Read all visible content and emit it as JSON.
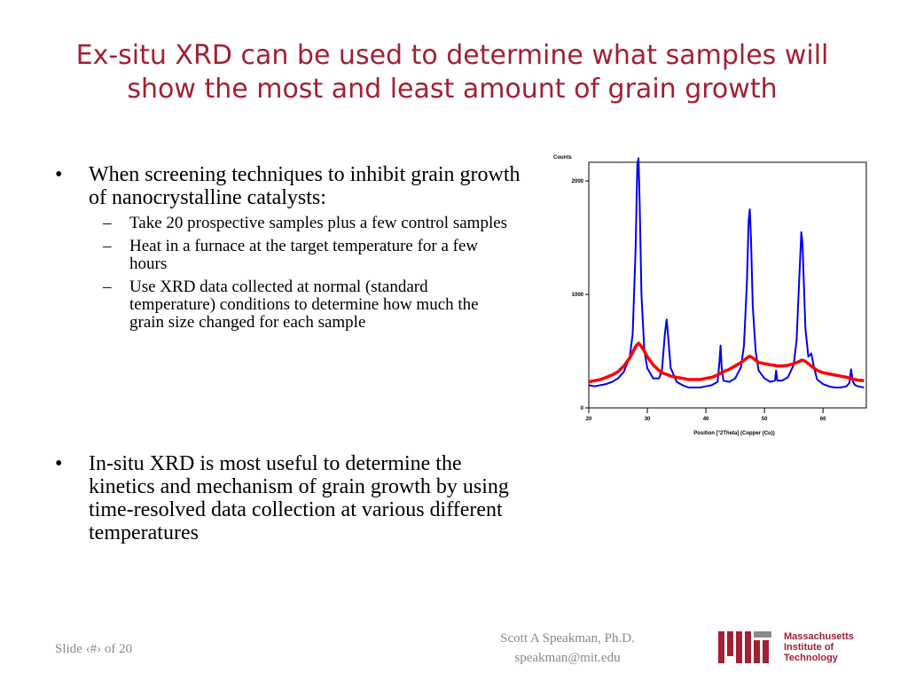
{
  "slide": {
    "title": "Ex-situ XRD can be used to determine what samples will show the most and least amount of grain growth",
    "bullets": [
      {
        "text": "When screening techniques to inhibit grain growth of nanocrystalline catalysts:",
        "sub": [
          "Take 20 prospective samples plus a few control samples",
          "Heat in a furnace at the target temperature for a few hours",
          "Use XRD data collected at normal (standard temperature) conditions to determine how much the grain size changed for each sample"
        ]
      },
      {
        "text": "In-situ XRD is most useful to determine the kinetics and mechanism of grain growth by using time-resolved data collection at various different temperatures"
      }
    ],
    "footer": {
      "slide_number": "Slide ‹#› of 20",
      "author": "Scott A Speakman, Ph.D.",
      "email": "speakman@mit.edu",
      "logo": [
        "Massachusetts",
        "Institute of",
        "Technology"
      ]
    }
  },
  "chart_data": {
    "type": "line",
    "ylabel": "Counts",
    "xlabel": "Position [°2Theta] (Copper (Cu))",
    "xlim": [
      20,
      67.4
    ],
    "ylim": [
      0,
      2165
    ],
    "xticks": [
      20,
      30,
      40,
      50,
      60
    ],
    "yticks": [
      0,
      1000,
      2000
    ],
    "x": [
      20,
      21,
      22,
      23,
      24,
      25,
      26,
      27,
      27.5,
      28,
      28.3,
      28.5,
      28.7,
      29,
      29.5,
      30,
      31,
      32,
      32.5,
      33,
      33.3,
      33.6,
      34,
      35,
      36,
      37,
      38,
      39,
      40,
      41,
      42,
      42.3,
      42.5,
      42.7,
      43,
      44,
      45,
      46,
      46.5,
      47,
      47.3,
      47.5,
      47.7,
      48,
      48.5,
      49,
      50,
      51,
      51.8,
      52,
      52.2,
      53,
      54,
      55,
      55.5,
      56,
      56.3,
      56.5,
      56.8,
      57,
      57.5,
      58,
      58.5,
      59,
      60,
      61,
      62,
      63,
      64,
      64.5,
      64.8,
      65.1,
      65.5,
      66,
      67
    ],
    "series": [
      {
        "color": "#0000ee",
        "values": [
          200,
          190,
          200,
          210,
          230,
          260,
          320,
          450,
          650,
          1400,
          2150,
          2200,
          1800,
          1000,
          500,
          350,
          260,
          260,
          330,
          650,
          780,
          600,
          350,
          230,
          200,
          180,
          180,
          180,
          190,
          200,
          230,
          400,
          550,
          350,
          240,
          230,
          260,
          360,
          550,
          1100,
          1650,
          1750,
          1500,
          900,
          500,
          330,
          260,
          230,
          240,
          330,
          240,
          240,
          270,
          380,
          600,
          1200,
          1550,
          1450,
          1000,
          700,
          450,
          480,
          350,
          250,
          210,
          190,
          180,
          180,
          190,
          220,
          340,
          230,
          200,
          190,
          180
        ]
      },
      {
        "color": "#ff0000",
        "values": [
          230,
          240,
          250,
          270,
          290,
          320,
          370,
          440,
          490,
          540,
          560,
          570,
          560,
          540,
          500,
          450,
          380,
          330,
          310,
          300,
          295,
          290,
          280,
          270,
          260,
          250,
          250,
          250,
          260,
          270,
          290,
          300,
          305,
          310,
          320,
          340,
          370,
          400,
          420,
          440,
          450,
          455,
          450,
          440,
          420,
          400,
          390,
          380,
          375,
          370,
          370,
          370,
          375,
          390,
          400,
          410,
          420,
          420,
          415,
          410,
          390,
          370,
          350,
          330,
          310,
          300,
          290,
          280,
          270,
          265,
          260,
          255,
          250,
          245,
          240
        ]
      }
    ]
  }
}
